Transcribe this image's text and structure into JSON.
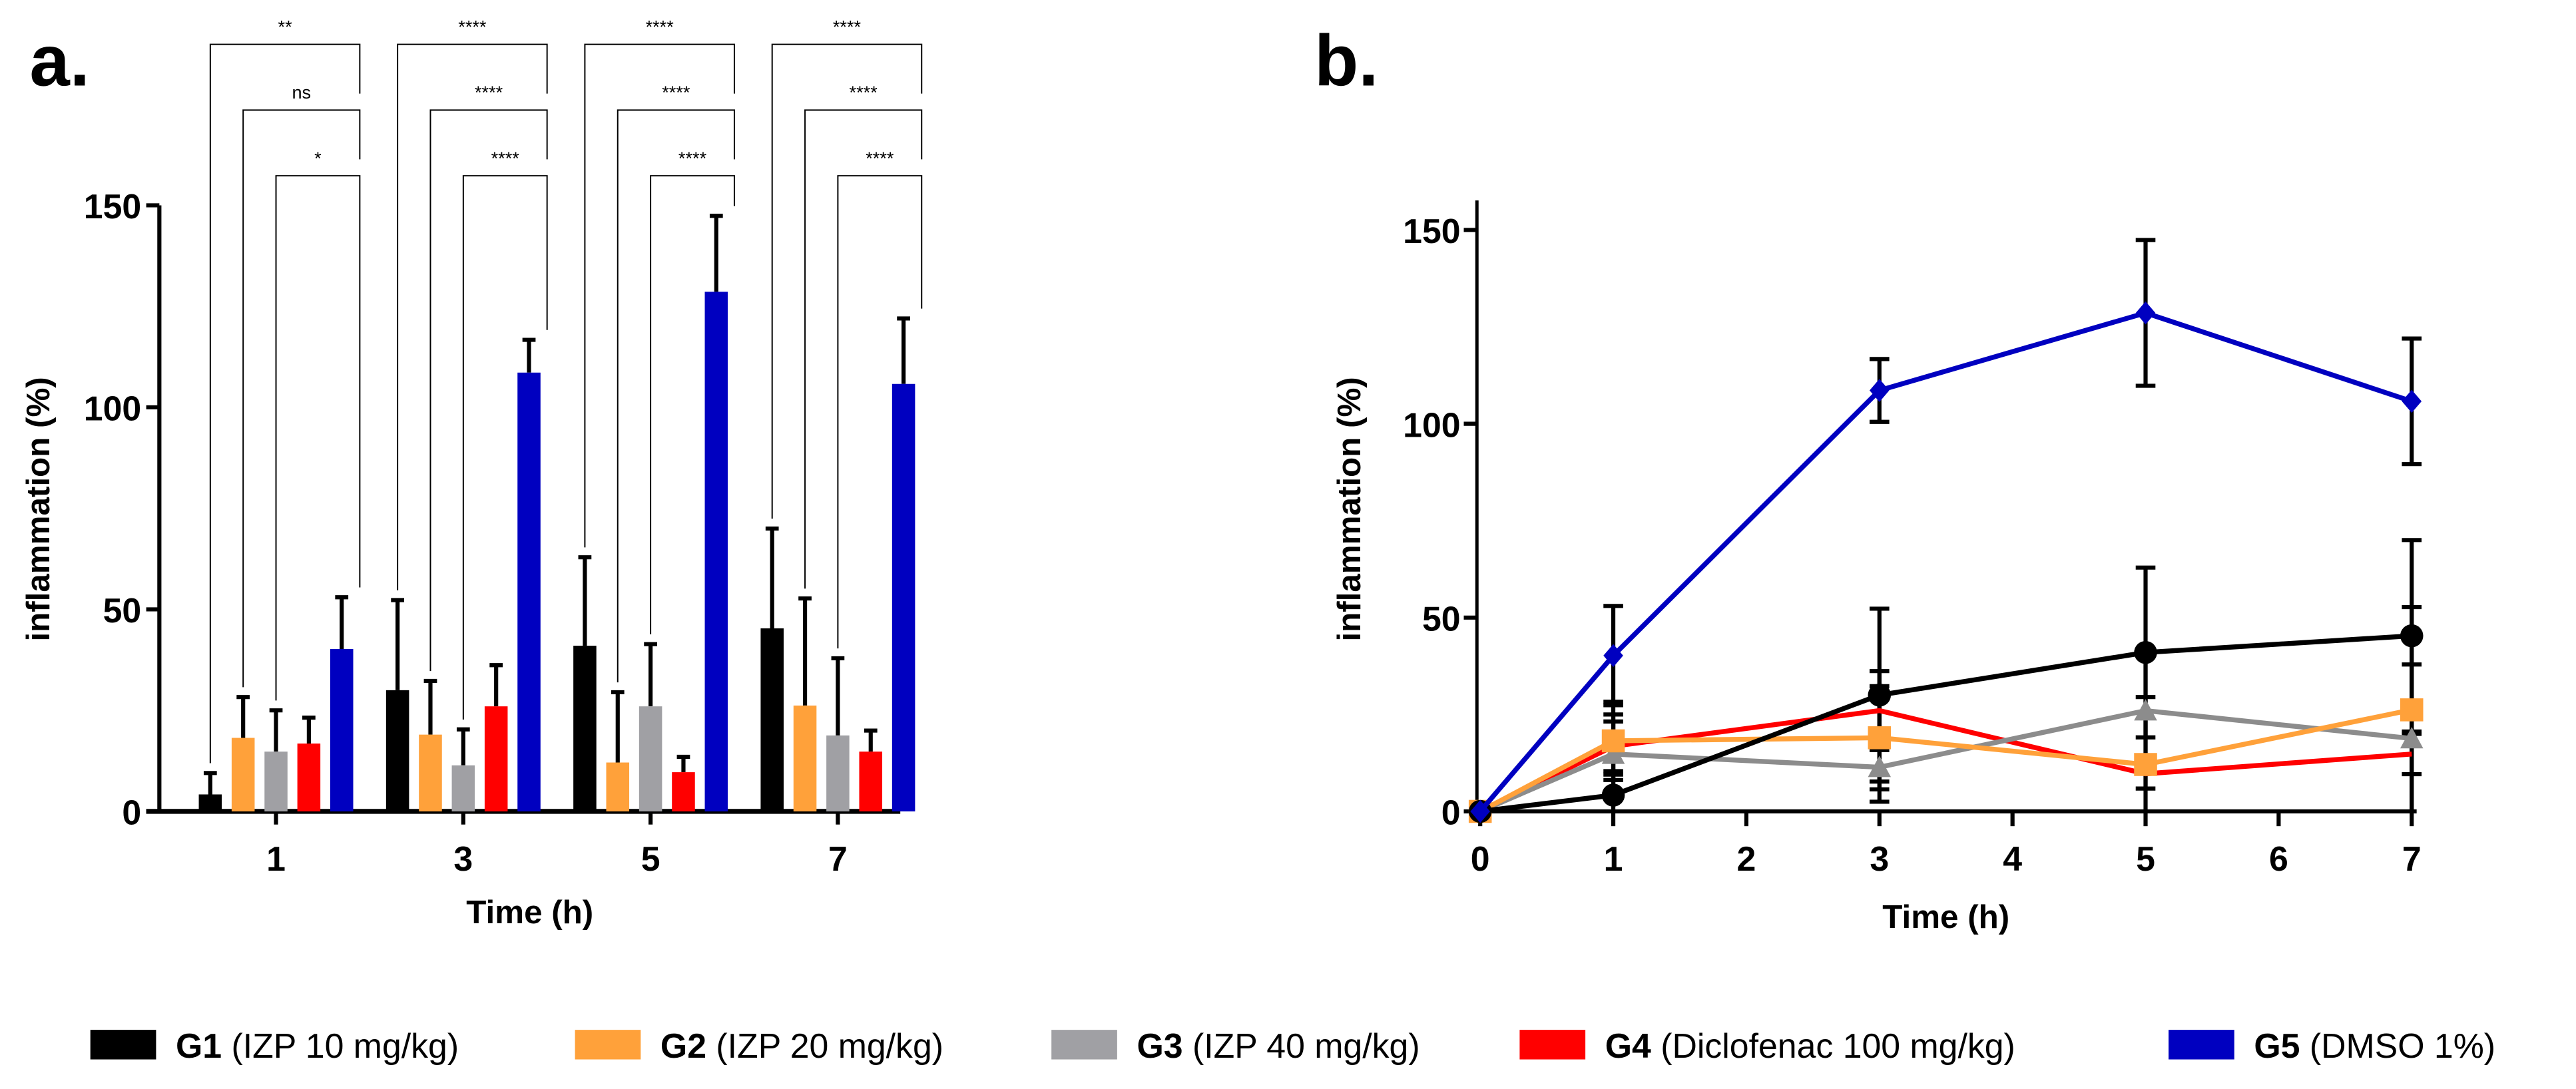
{
  "panel_labels": {
    "a": "a.",
    "b": "b."
  },
  "colors": {
    "G1": "#000000",
    "G2": "#FFA13A",
    "G3": "#A0A0A4",
    "G4": "#FF0000",
    "G5": "#0000C0",
    "G3_line": "#8C8C8C"
  },
  "legend": [
    {
      "key": "G1",
      "bold": "G1",
      "text": " (IZP 10 mg/kg)"
    },
    {
      "key": "G2",
      "bold": "G2",
      "text": " (IZP 20 mg/kg)"
    },
    {
      "key": "G3",
      "bold": "G3",
      "text": " (IZP 40 mg/kg)"
    },
    {
      "key": "G4",
      "bold": "G4",
      "text": " (Diclofenac 100 mg/kg)"
    },
    {
      "key": "G5",
      "bold": "G5",
      "text": " (DMSO 1%)"
    }
  ],
  "chart_data": [
    {
      "type": "bar",
      "panel": "a.",
      "xlabel": "Time (h)",
      "ylabel": "inflammation (%)",
      "ylim": [
        0,
        150
      ],
      "yticks": [
        0,
        50,
        100,
        150
      ],
      "categories": [
        "1",
        "3",
        "5",
        "7"
      ],
      "series": [
        {
          "name": "G1",
          "values": [
            4.2,
            30,
            41,
            45.3
          ],
          "sd": [
            5.3,
            22.3,
            21.9,
            24.7
          ]
        },
        {
          "name": "G2",
          "values": [
            18.2,
            19,
            12.1,
            26.2
          ],
          "sd": [
            10.1,
            13.3,
            17.4,
            26.5
          ]
        },
        {
          "name": "G3",
          "values": [
            14.8,
            11.4,
            26,
            18.8
          ],
          "sd": [
            10.2,
            8.9,
            15.4,
            19.1
          ]
        },
        {
          "name": "G4",
          "values": [
            16.8,
            26,
            9.7,
            14.8
          ],
          "sd": [
            6.4,
            10.2,
            3.8,
            5.2
          ]
        },
        {
          "name": "G5",
          "values": [
            40.2,
            108.6,
            128.6,
            105.8
          ],
          "sd": [
            12.8,
            8.1,
            18.8,
            16.2
          ]
        }
      ],
      "significance": [
        [
          "**",
          "ns",
          "*"
        ],
        [
          "****",
          "****",
          "****"
        ],
        [
          "****",
          "****",
          "****"
        ],
        [
          "****",
          "****",
          "****"
        ]
      ]
    },
    {
      "type": "line",
      "panel": "b.",
      "xlabel": "Time (h)",
      "ylabel": "inflammation (%)",
      "ylim": [
        0,
        160
      ],
      "yticks": [
        0,
        50,
        100,
        150
      ],
      "xlim": [
        0,
        7
      ],
      "xticks": [
        0,
        1,
        2,
        3,
        4,
        5,
        6,
        7
      ],
      "x": [
        0,
        1,
        3,
        5,
        7
      ],
      "series": [
        {
          "name": "G1",
          "marker": "circle",
          "values": [
            0,
            4.2,
            30,
            41,
            45.3
          ],
          "sd": [
            0,
            5.3,
            22.3,
            21.9,
            24.7
          ]
        },
        {
          "name": "G2",
          "marker": "square",
          "values": [
            0,
            18.2,
            19,
            12.1,
            26.2
          ],
          "sd": [
            0,
            10.1,
            13.3,
            17.4,
            26.5
          ]
        },
        {
          "name": "G3",
          "marker": "triangle",
          "values": [
            0,
            14.8,
            11.4,
            26,
            18.8
          ],
          "sd": [
            0,
            10.2,
            8.9,
            15.4,
            19.1
          ]
        },
        {
          "name": "G4",
          "marker": "none",
          "values": [
            0,
            16.8,
            26,
            9.7,
            14.8
          ],
          "sd": [
            0,
            6.4,
            10.2,
            3.8,
            5.2
          ]
        },
        {
          "name": "G5",
          "marker": "diamond",
          "values": [
            0,
            40.2,
            108.6,
            128.6,
            105.8
          ],
          "sd": [
            0,
            12.8,
            8.1,
            18.8,
            16.2
          ]
        }
      ]
    }
  ]
}
